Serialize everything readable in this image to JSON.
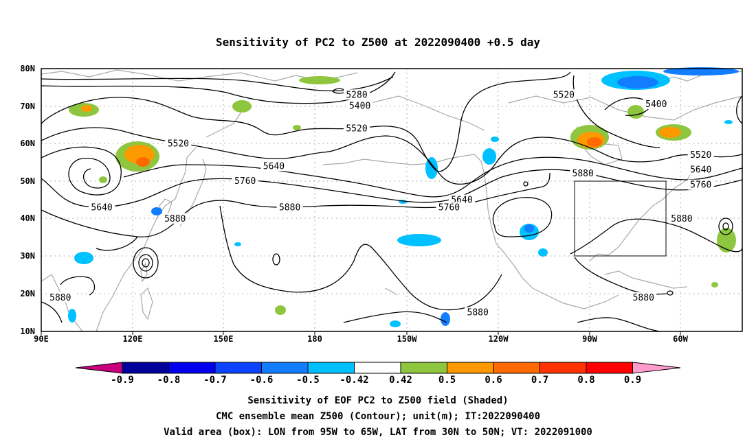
{
  "title": "Sensitivity of PC2 to Z500 at 2022090400 +0.5 day",
  "map": {
    "lon_ticks": [
      "90E",
      "120E",
      "150E",
      "180",
      "150W",
      "120W",
      "90W",
      "60W"
    ],
    "lat_ticks": [
      "80N",
      "70N",
      "60N",
      "50N",
      "40N",
      "30N",
      "20N",
      "10N"
    ],
    "extent": {
      "lon_min": 90,
      "lon_max": 310,
      "lat_min": 10,
      "lat_max": 80
    },
    "valid_box": {
      "lon_min": 265,
      "lon_max": 295,
      "lat_min": 30,
      "lat_max": 50
    },
    "contour_labels": [
      {
        "text": "5280",
        "lon": 189,
        "lat": 73
      },
      {
        "text": "5400",
        "lon": 190,
        "lat": 70
      },
      {
        "text": "5400",
        "lon": 283,
        "lat": 70.5
      },
      {
        "text": "5520",
        "lon": 189,
        "lat": 64
      },
      {
        "text": "5520",
        "lon": 133,
        "lat": 60
      },
      {
        "text": "5520",
        "lon": 254,
        "lat": 73
      },
      {
        "text": "5520",
        "lon": 297,
        "lat": 57
      },
      {
        "text": "5640",
        "lon": 163,
        "lat": 54
      },
      {
        "text": "5640",
        "lon": 222,
        "lat": 45
      },
      {
        "text": "5640",
        "lon": 109,
        "lat": 43
      },
      {
        "text": "5640",
        "lon": 297,
        "lat": 53
      },
      {
        "text": "5760",
        "lon": 154,
        "lat": 50
      },
      {
        "text": "5760",
        "lon": 218,
        "lat": 43
      },
      {
        "text": "5760",
        "lon": 297,
        "lat": 49
      },
      {
        "text": "5880",
        "lon": 168,
        "lat": 43
      },
      {
        "text": "5880",
        "lon": 132,
        "lat": 40
      },
      {
        "text": "5880",
        "lon": 260,
        "lat": 52
      },
      {
        "text": "5880",
        "lon": 96,
        "lat": 19
      },
      {
        "text": "5880",
        "lon": 227,
        "lat": 15
      },
      {
        "text": "5880",
        "lon": 279,
        "lat": 19
      },
      {
        "text": "5880",
        "lon": 291,
        "lat": 40
      }
    ]
  },
  "colorbar": {
    "labels": [
      "-0.9",
      "-0.8",
      "-0.7",
      "-0.6",
      "-0.5",
      "-0.42",
      "0.42",
      "0.5",
      "0.6",
      "0.7",
      "0.8",
      "0.9"
    ],
    "colors": {
      "under": "#c8007c",
      "levels": [
        "#00009b",
        "#0000ee",
        "#0c43ff",
        "#127eff",
        "#00c1ff",
        "#ffffff",
        "#8ec63f",
        "#ff9900",
        "#ff6a00",
        "#ff3300",
        "#ff0000"
      ],
      "over": "#ff9ccb"
    }
  },
  "captions": {
    "line1": "Sensitivity of EOF PC2 to Z500 field (Shaded)",
    "line2": "CMC ensemble mean Z500 (Contour); unit(m); IT:2022090400",
    "line3": "Valid area (box): LON from 95W to 65W, LAT from 30N to 50N; VT: 2022091000"
  }
}
